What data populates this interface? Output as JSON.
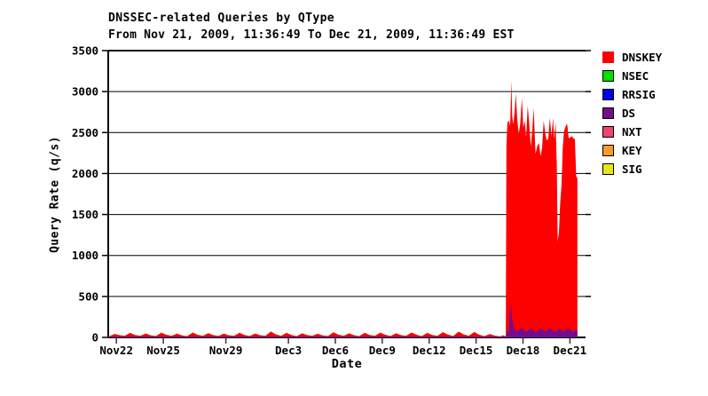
{
  "header": {
    "title": "DNSSEC-related Queries by QType",
    "subtitle": "From Nov 21, 2009, 11:36:49 To Dec 21, 2009, 11:36:49 EST"
  },
  "axes": {
    "y_label": "Query Rate (q/s)",
    "x_label": "Date"
  },
  "legend": {
    "items": [
      {
        "label": "DNSKEY",
        "color": "#fd0000"
      },
      {
        "label": "NSEC",
        "color": "#00e000"
      },
      {
        "label": "RRSIG",
        "color": "#0000ee"
      },
      {
        "label": "DS",
        "color": "#730d8e"
      },
      {
        "label": "NXT",
        "color": "#f0436e"
      },
      {
        "label": "KEY",
        "color": "#fb9a28"
      },
      {
        "label": "SIG",
        "color": "#e6e614"
      }
    ]
  },
  "chart_data": {
    "type": "area",
    "stacked": false,
    "title": "DNSSEC-related Queries by QType",
    "subtitle": "From Nov 21, 2009, 11:36:49 To Dec 21, 2009, 11:36:49 EST",
    "xlabel": "Date",
    "ylabel": "Query Rate (q/s)",
    "ylim": [
      0,
      3500
    ],
    "y_ticks": [
      0,
      500,
      1000,
      1500,
      2000,
      2500,
      3000,
      3500
    ],
    "grid": "horizontal",
    "legend_position": "right",
    "x_unit": "days since Nov 21, 2009 11:36:49 EST",
    "x_range_days": 30.52,
    "x_ticks": [
      {
        "t": 0.52,
        "label": "Nov22"
      },
      {
        "t": 3.52,
        "label": "Nov25"
      },
      {
        "t": 7.52,
        "label": "Nov29"
      },
      {
        "t": 11.52,
        "label": "Dec3"
      },
      {
        "t": 14.52,
        "label": "Dec6"
      },
      {
        "t": 17.52,
        "label": "Dec9"
      },
      {
        "t": 20.52,
        "label": "Dec12"
      },
      {
        "t": 23.52,
        "label": "Dec15"
      },
      {
        "t": 26.52,
        "label": "Dec18"
      },
      {
        "t": 29.52,
        "label": "Dec21"
      }
    ],
    "series": [
      {
        "name": "DNSKEY",
        "color": "#fd0000",
        "points": [
          [
            0,
            20
          ],
          [
            0.05,
            12
          ],
          [
            0.4,
            42
          ],
          [
            0.7,
            28
          ],
          [
            1.05,
            18
          ],
          [
            1.4,
            55
          ],
          [
            1.7,
            30
          ],
          [
            2.05,
            20
          ],
          [
            2.4,
            48
          ],
          [
            2.7,
            26
          ],
          [
            3.05,
            16
          ],
          [
            3.4,
            58
          ],
          [
            3.7,
            32
          ],
          [
            4.05,
            18
          ],
          [
            4.4,
            46
          ],
          [
            4.7,
            25
          ],
          [
            5.05,
            15
          ],
          [
            5.4,
            60
          ],
          [
            5.7,
            33
          ],
          [
            6.05,
            20
          ],
          [
            6.4,
            52
          ],
          [
            6.7,
            28
          ],
          [
            7.05,
            17
          ],
          [
            7.4,
            45
          ],
          [
            7.7,
            26
          ],
          [
            8.05,
            19
          ],
          [
            8.4,
            56
          ],
          [
            8.7,
            30
          ],
          [
            9.05,
            16
          ],
          [
            9.4,
            48
          ],
          [
            9.7,
            27
          ],
          [
            10.05,
            20
          ],
          [
            10.4,
            72
          ],
          [
            10.7,
            38
          ],
          [
            11.05,
            18
          ],
          [
            11.4,
            55
          ],
          [
            11.7,
            30
          ],
          [
            12.05,
            15
          ],
          [
            12.4,
            50
          ],
          [
            12.7,
            28
          ],
          [
            13.05,
            18
          ],
          [
            13.4,
            44
          ],
          [
            13.7,
            25
          ],
          [
            14.05,
            16
          ],
          [
            14.4,
            62
          ],
          [
            14.7,
            34
          ],
          [
            15.05,
            19
          ],
          [
            15.4,
            50
          ],
          [
            15.7,
            27
          ],
          [
            16.05,
            15
          ],
          [
            16.4,
            55
          ],
          [
            16.7,
            30
          ],
          [
            17.05,
            18
          ],
          [
            17.4,
            58
          ],
          [
            17.7,
            32
          ],
          [
            18.05,
            16
          ],
          [
            18.4,
            50
          ],
          [
            18.7,
            28
          ],
          [
            19.05,
            18
          ],
          [
            19.4,
            60
          ],
          [
            19.7,
            33
          ],
          [
            20.05,
            15
          ],
          [
            20.4,
            55
          ],
          [
            20.7,
            30
          ],
          [
            21.05,
            18
          ],
          [
            21.4,
            64
          ],
          [
            21.7,
            35
          ],
          [
            22.05,
            16
          ],
          [
            22.4,
            70
          ],
          [
            22.7,
            38
          ],
          [
            23.05,
            18
          ],
          [
            23.4,
            66
          ],
          [
            23.7,
            34
          ],
          [
            24.05,
            15
          ],
          [
            24.4,
            40
          ],
          [
            24.7,
            22
          ],
          [
            25.05,
            12
          ],
          [
            25.25,
            26
          ],
          [
            25.38,
            14
          ],
          [
            25.42,
            20
          ],
          [
            25.46,
            2350
          ],
          [
            25.52,
            2620
          ],
          [
            25.62,
            2645
          ],
          [
            25.7,
            2580
          ],
          [
            25.78,
            3130
          ],
          [
            25.83,
            2700
          ],
          [
            25.9,
            2600
          ],
          [
            26.0,
            2790
          ],
          [
            26.06,
            2975
          ],
          [
            26.14,
            2700
          ],
          [
            26.24,
            2480
          ],
          [
            26.34,
            2600
          ],
          [
            26.45,
            2920
          ],
          [
            26.54,
            2560
          ],
          [
            26.63,
            2645
          ],
          [
            26.72,
            2440
          ],
          [
            26.82,
            2825
          ],
          [
            26.92,
            2610
          ],
          [
            27.02,
            2330
          ],
          [
            27.12,
            2550
          ],
          [
            27.2,
            2800
          ],
          [
            27.32,
            2240
          ],
          [
            27.44,
            2340
          ],
          [
            27.55,
            2370
          ],
          [
            27.64,
            2210
          ],
          [
            27.74,
            2310
          ],
          [
            27.84,
            2645
          ],
          [
            27.94,
            2500
          ],
          [
            28.04,
            2400
          ],
          [
            28.14,
            2430
          ],
          [
            28.24,
            2680
          ],
          [
            28.34,
            2450
          ],
          [
            28.44,
            2680
          ],
          [
            28.52,
            2420
          ],
          [
            28.6,
            2625
          ],
          [
            28.68,
            2100
          ],
          [
            28.74,
            1170
          ],
          [
            28.82,
            1280
          ],
          [
            28.9,
            1640
          ],
          [
            28.98,
            1860
          ],
          [
            29.06,
            2320
          ],
          [
            29.14,
            2516
          ],
          [
            29.24,
            2570
          ],
          [
            29.34,
            2610
          ],
          [
            29.44,
            2430
          ],
          [
            29.54,
            2440
          ],
          [
            29.64,
            2455
          ],
          [
            29.74,
            2430
          ],
          [
            29.84,
            2420
          ],
          [
            29.92,
            1970
          ],
          [
            30.0,
            1940
          ]
        ]
      },
      {
        "name": "DS",
        "color": "#730d8e",
        "points": [
          [
            0,
            10
          ],
          [
            0.5,
            13
          ],
          [
            1,
            9
          ],
          [
            1.5,
            12
          ],
          [
            2,
            10
          ],
          [
            2.5,
            13
          ],
          [
            3,
            9
          ],
          [
            3.5,
            12
          ],
          [
            4,
            10
          ],
          [
            4.5,
            12
          ],
          [
            5,
            9
          ],
          [
            5.5,
            13
          ],
          [
            6,
            10
          ],
          [
            6.5,
            12
          ],
          [
            7,
            9
          ],
          [
            7.5,
            12
          ],
          [
            8,
            10
          ],
          [
            8.5,
            13
          ],
          [
            9,
            9
          ],
          [
            9.5,
            12
          ],
          [
            10,
            11
          ],
          [
            10.5,
            14
          ],
          [
            11,
            10
          ],
          [
            11.5,
            12
          ],
          [
            12,
            9
          ],
          [
            12.5,
            12
          ],
          [
            13,
            10
          ],
          [
            13.5,
            12
          ],
          [
            14,
            9
          ],
          [
            14.5,
            13
          ],
          [
            15,
            10
          ],
          [
            15.5,
            12
          ],
          [
            16,
            9
          ],
          [
            16.5,
            12
          ],
          [
            17,
            10
          ],
          [
            17.5,
            13
          ],
          [
            18,
            9
          ],
          [
            18.5,
            12
          ],
          [
            19,
            10
          ],
          [
            19.5,
            13
          ],
          [
            20,
            9
          ],
          [
            20.5,
            12
          ],
          [
            21,
            10
          ],
          [
            21.5,
            13
          ],
          [
            22,
            11
          ],
          [
            22.5,
            13
          ],
          [
            23,
            10
          ],
          [
            23.5,
            12
          ],
          [
            24,
            9
          ],
          [
            24.5,
            11
          ],
          [
            25,
            8
          ],
          [
            25.3,
            10
          ],
          [
            25.42,
            12
          ],
          [
            25.5,
            60
          ],
          [
            25.62,
            90
          ],
          [
            25.7,
            330
          ],
          [
            25.76,
            415
          ],
          [
            25.82,
            250
          ],
          [
            25.9,
            130
          ],
          [
            26.0,
            95
          ],
          [
            26.15,
            70
          ],
          [
            26.3,
            100
          ],
          [
            26.45,
            115
          ],
          [
            26.6,
            90
          ],
          [
            26.75,
            65
          ],
          [
            26.9,
            95
          ],
          [
            27.05,
            110
          ],
          [
            27.2,
            85
          ],
          [
            27.35,
            60
          ],
          [
            27.5,
            90
          ],
          [
            27.65,
            110
          ],
          [
            27.8,
            95
          ],
          [
            27.95,
            70
          ],
          [
            28.1,
            95
          ],
          [
            28.25,
            115
          ],
          [
            28.4,
            90
          ],
          [
            28.55,
            65
          ],
          [
            28.7,
            85
          ],
          [
            28.85,
            105
          ],
          [
            29.0,
            90
          ],
          [
            29.15,
            70
          ],
          [
            29.3,
            100
          ],
          [
            29.45,
            110
          ],
          [
            29.6,
            85
          ],
          [
            29.75,
            65
          ],
          [
            29.9,
            95
          ],
          [
            30.0,
            85
          ]
        ]
      },
      {
        "name": "NSEC",
        "color": "#00e000",
        "blip_points": [
          [
            13.1,
            12
          ],
          [
            23.8,
            14
          ],
          [
            25.2,
            18
          ]
        ]
      },
      {
        "name": "RRSIG",
        "color": "#0000ee",
        "points": []
      },
      {
        "name": "NXT",
        "color": "#f0436e",
        "points": []
      },
      {
        "name": "KEY",
        "color": "#fb9a28",
        "points": []
      },
      {
        "name": "SIG",
        "color": "#e6e614",
        "points": []
      }
    ]
  }
}
